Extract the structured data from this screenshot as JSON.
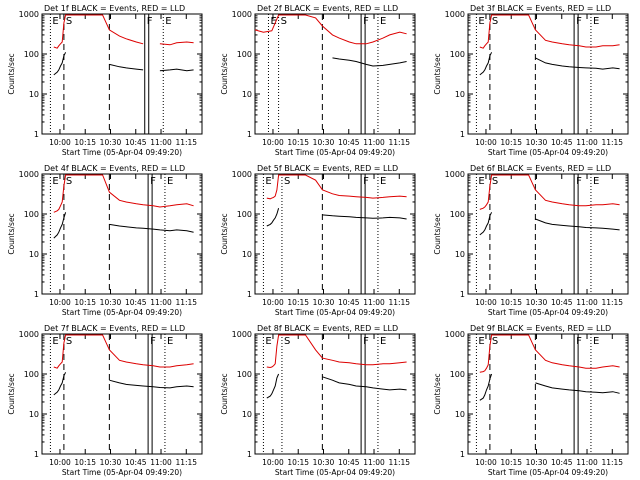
{
  "figure": {
    "ylabel": "Counts/sec",
    "xlabel": "Start Time (05-Apr-04 09:49:20)",
    "x_tick_labels": [
      "10:00",
      "10:15",
      "10:30",
      "10:45",
      "11:00",
      "11:15"
    ],
    "y_tick_labels": [
      "1",
      "10",
      "100",
      "1000"
    ],
    "colors": {
      "events": "#000000",
      "lld": "#dd0000",
      "marker": "#000000"
    }
  },
  "chart_data": [
    {
      "type": "line",
      "title": "Det 1f BLACK = Events, RED = LLD",
      "xlabel": "Start Time (05-Apr-04 09:49:20)",
      "ylabel": "Counts/sec",
      "x_unit": "minutes after 09:49:20",
      "xlim": [
        0,
        95
      ],
      "ylim": [
        1,
        1000
      ],
      "y_scale": "log",
      "x": [
        7,
        9,
        10,
        11,
        12,
        13,
        14,
        20,
        24,
        30,
        36,
        40,
        46,
        50,
        56,
        60,
        66,
        70,
        76,
        80,
        86,
        90
      ],
      "series": [
        {
          "name": "Events",
          "values": [
            30,
            35,
            40,
            50,
            60,
            90,
            110,
            null,
            null,
            null,
            null,
            55,
            48,
            45,
            42,
            40,
            null,
            38,
            40,
            42,
            38,
            40
          ]
        },
        {
          "name": "LLD",
          "values": [
            150,
            140,
            160,
            180,
            200,
            600,
            1000,
            1000,
            1000,
            1000,
            1000,
            400,
            280,
            240,
            200,
            180,
            null,
            180,
            170,
            190,
            200,
            190
          ]
        }
      ],
      "markers": [
        {
          "label": "E",
          "style": "dotted",
          "x": 5
        },
        {
          "label": "S",
          "style": "dashed",
          "x": 13
        },
        {
          "label": "",
          "style": "dashed",
          "x": 40
        },
        {
          "label": "F",
          "style": "solid",
          "x": 61
        },
        {
          "label": "E",
          "style": "dotted",
          "x": 72
        }
      ]
    },
    {
      "type": "line",
      "title": "Det 2f BLACK = Events, RED = LLD",
      "xlabel": "Start Time (05-Apr-04 09:49:20)",
      "ylabel": "Counts/sec",
      "x_unit": "minutes after 09:49:20",
      "xlim": [
        0,
        95
      ],
      "ylim": [
        1,
        1000
      ],
      "y_scale": "log",
      "x": [
        0,
        5,
        10,
        14,
        18,
        22,
        26,
        30,
        36,
        40,
        46,
        50,
        56,
        60,
        66,
        70,
        76,
        80,
        86,
        90
      ],
      "series": [
        {
          "name": "Events",
          "values": [
            null,
            null,
            null,
            null,
            null,
            null,
            null,
            null,
            null,
            null,
            80,
            75,
            70,
            65,
            55,
            50,
            52,
            55,
            60,
            65
          ]
        },
        {
          "name": "LLD",
          "values": [
            400,
            350,
            380,
            1000,
            1000,
            1000,
            1000,
            1000,
            800,
            500,
            300,
            250,
            200,
            180,
            180,
            200,
            250,
            300,
            350,
            320
          ]
        }
      ],
      "markers": [
        {
          "label": "E",
          "style": "dotted",
          "x": 8
        },
        {
          "label": "S",
          "style": "dotted",
          "x": 14
        },
        {
          "label": "",
          "style": "dashed",
          "x": 40
        },
        {
          "label": "F",
          "style": "solid",
          "x": 63
        },
        {
          "label": "E",
          "style": "dotted",
          "x": 73
        }
      ]
    },
    {
      "type": "line",
      "title": "Det 3f BLACK = Events, RED = LLD",
      "xlabel": "Start Time (05-Apr-04 09:49:20)",
      "ylabel": "Counts/sec",
      "x_unit": "minutes after 09:49:20",
      "xlim": [
        0,
        95
      ],
      "ylim": [
        1,
        1000
      ],
      "y_scale": "log",
      "x": [
        7,
        9,
        10,
        11,
        12,
        13,
        14,
        20,
        24,
        30,
        36,
        40,
        46,
        50,
        56,
        60,
        66,
        70,
        76,
        80,
        86,
        90
      ],
      "series": [
        {
          "name": "Events",
          "values": [
            30,
            35,
            40,
            50,
            60,
            90,
            110,
            null,
            null,
            null,
            null,
            80,
            60,
            55,
            50,
            48,
            46,
            45,
            44,
            42,
            45,
            43
          ]
        },
        {
          "name": "LLD",
          "values": [
            150,
            140,
            160,
            180,
            200,
            600,
            1000,
            1000,
            1000,
            1000,
            1000,
            400,
            220,
            200,
            180,
            170,
            160,
            150,
            150,
            160,
            160,
            170
          ]
        }
      ],
      "markers": [
        {
          "label": "E",
          "style": "dotted",
          "x": 5
        },
        {
          "label": "S",
          "style": "dashed",
          "x": 13
        },
        {
          "label": "",
          "style": "dashed",
          "x": 40
        },
        {
          "label": "F",
          "style": "solid",
          "x": 63
        },
        {
          "label": "E",
          "style": "dotted",
          "x": 73
        }
      ]
    },
    {
      "type": "line",
      "title": "Det 4f BLACK = Events, RED = LLD",
      "xlabel": "Start Time (05-Apr-04 09:49:20)",
      "ylabel": "Counts/sec",
      "x_unit": "minutes after 09:49:20",
      "xlim": [
        0,
        95
      ],
      "ylim": [
        1,
        1000
      ],
      "y_scale": "log",
      "x": [
        7,
        9,
        10,
        11,
        12,
        13,
        14,
        20,
        24,
        30,
        36,
        40,
        46,
        50,
        56,
        60,
        66,
        70,
        76,
        80,
        86,
        90
      ],
      "series": [
        {
          "name": "Events",
          "values": [
            25,
            30,
            35,
            45,
            55,
            80,
            110,
            null,
            null,
            null,
            null,
            55,
            50,
            48,
            45,
            44,
            42,
            40,
            38,
            40,
            38,
            35
          ]
        },
        {
          "name": "LLD",
          "values": [
            110,
            120,
            130,
            160,
            200,
            500,
            1000,
            1000,
            1000,
            1000,
            1000,
            350,
            220,
            200,
            180,
            170,
            160,
            150,
            160,
            170,
            180,
            160
          ]
        }
      ],
      "markers": [
        {
          "label": "E",
          "style": "dotted",
          "x": 5
        },
        {
          "label": "S",
          "style": "dashed",
          "x": 13
        },
        {
          "label": "",
          "style": "dashed",
          "x": 40
        },
        {
          "label": "F",
          "style": "solid",
          "x": 63
        },
        {
          "label": "E",
          "style": "dotted",
          "x": 73
        }
      ]
    },
    {
      "type": "line",
      "title": "Det 5f BLACK = Events, RED = LLD",
      "xlabel": "Start Time (05-Apr-04 09:49:20)",
      "ylabel": "Counts/sec",
      "x_unit": "minutes after 09:49:20",
      "xlim": [
        0,
        95
      ],
      "ylim": [
        1,
        1000
      ],
      "y_scale": "log",
      "x": [
        7,
        9,
        10,
        11,
        12,
        13,
        14,
        20,
        24,
        30,
        36,
        40,
        46,
        50,
        56,
        60,
        66,
        70,
        76,
        80,
        86,
        90
      ],
      "series": [
        {
          "name": "Events",
          "values": [
            50,
            55,
            60,
            70,
            80,
            100,
            140,
            null,
            null,
            null,
            null,
            95,
            90,
            88,
            85,
            82,
            80,
            78,
            80,
            82,
            80,
            75
          ]
        },
        {
          "name": "LLD",
          "values": [
            250,
            240,
            250,
            260,
            280,
            400,
            1000,
            1000,
            1000,
            1000,
            700,
            400,
            320,
            290,
            280,
            270,
            260,
            250,
            260,
            270,
            280,
            270
          ]
        }
      ],
      "markers": [
        {
          "label": "E",
          "style": "dotted",
          "x": 5
        },
        {
          "label": "S",
          "style": "dotted",
          "x": 16
        },
        {
          "label": "",
          "style": "dashed",
          "x": 40
        },
        {
          "label": "F",
          "style": "solid",
          "x": 63
        },
        {
          "label": "E",
          "style": "dotted",
          "x": 73
        }
      ]
    },
    {
      "type": "line",
      "title": "Det 6f BLACK = Events, RED = LLD",
      "xlabel": "Start Time (05-Apr-04 09:49:20)",
      "ylabel": "Counts/sec",
      "x_unit": "minutes after 09:49:20",
      "xlim": [
        0,
        95
      ],
      "ylim": [
        1,
        1000
      ],
      "y_scale": "log",
      "x": [
        7,
        9,
        10,
        11,
        12,
        13,
        14,
        20,
        24,
        30,
        36,
        40,
        46,
        50,
        56,
        60,
        66,
        70,
        76,
        80,
        86,
        90
      ],
      "series": [
        {
          "name": "Events",
          "values": [
            30,
            35,
            40,
            50,
            60,
            90,
            110,
            null,
            null,
            null,
            null,
            75,
            60,
            55,
            52,
            50,
            48,
            46,
            45,
            44,
            42,
            40
          ]
        },
        {
          "name": "LLD",
          "values": [
            130,
            140,
            150,
            170,
            200,
            500,
            1000,
            1000,
            1000,
            1000,
            1000,
            400,
            220,
            200,
            180,
            170,
            160,
            160,
            170,
            170,
            180,
            170
          ]
        }
      ],
      "markers": [
        {
          "label": "E",
          "style": "dotted",
          "x": 5
        },
        {
          "label": "S",
          "style": "dashed",
          "x": 13
        },
        {
          "label": "",
          "style": "dashed",
          "x": 40
        },
        {
          "label": "F",
          "style": "solid",
          "x": 63
        },
        {
          "label": "E",
          "style": "dotted",
          "x": 73
        }
      ]
    },
    {
      "type": "line",
      "title": "Det 7f BLACK = Events, RED = LLD",
      "xlabel": "Start Time (05-Apr-04 09:49:20)",
      "ylabel": "Counts/sec",
      "x_unit": "minutes after 09:49:20",
      "xlim": [
        0,
        95
      ],
      "ylim": [
        1,
        1000
      ],
      "y_scale": "log",
      "x": [
        7,
        9,
        10,
        11,
        12,
        13,
        14,
        20,
        24,
        30,
        36,
        40,
        46,
        50,
        56,
        60,
        66,
        70,
        76,
        80,
        86,
        90
      ],
      "series": [
        {
          "name": "Events",
          "values": [
            30,
            35,
            40,
            50,
            60,
            90,
            110,
            null,
            null,
            null,
            null,
            70,
            60,
            55,
            52,
            50,
            48,
            46,
            45,
            48,
            50,
            48
          ]
        },
        {
          "name": "LLD",
          "values": [
            150,
            140,
            160,
            180,
            200,
            600,
            1000,
            1000,
            1000,
            1000,
            1000,
            400,
            220,
            200,
            180,
            170,
            160,
            150,
            150,
            160,
            170,
            180
          ]
        }
      ],
      "markers": [
        {
          "label": "E",
          "style": "dotted",
          "x": 5
        },
        {
          "label": "S",
          "style": "dashed",
          "x": 13
        },
        {
          "label": "",
          "style": "dashed",
          "x": 40
        },
        {
          "label": "F",
          "style": "solid",
          "x": 63
        },
        {
          "label": "E",
          "style": "dotted",
          "x": 73
        }
      ]
    },
    {
      "type": "line",
      "title": "Det 8f BLACK = Events, RED = LLD",
      "xlabel": "Start Time (05-Apr-04 09:49:20)",
      "ylabel": "Counts/sec",
      "x_unit": "minutes after 09:49:20",
      "xlim": [
        0,
        95
      ],
      "ylim": [
        1,
        1000
      ],
      "y_scale": "log",
      "x": [
        7,
        9,
        10,
        11,
        12,
        13,
        14,
        20,
        24,
        30,
        36,
        40,
        46,
        50,
        56,
        60,
        66,
        70,
        76,
        80,
        86,
        90
      ],
      "series": [
        {
          "name": "Events",
          "values": [
            25,
            28,
            32,
            40,
            50,
            80,
            100,
            null,
            null,
            null,
            null,
            85,
            70,
            60,
            55,
            50,
            48,
            45,
            42,
            40,
            42,
            40
          ]
        },
        {
          "name": "LLD",
          "values": [
            150,
            145,
            150,
            160,
            180,
            500,
            1000,
            1000,
            1000,
            1000,
            400,
            250,
            220,
            200,
            190,
            180,
            170,
            170,
            180,
            180,
            190,
            200
          ]
        }
      ],
      "markers": [
        {
          "label": "E",
          "style": "dotted",
          "x": 5
        },
        {
          "label": "S",
          "style": "dotted",
          "x": 16
        },
        {
          "label": "",
          "style": "dashed",
          "x": 40
        },
        {
          "label": "F",
          "style": "solid",
          "x": 63
        },
        {
          "label": "E",
          "style": "dotted",
          "x": 73
        }
      ]
    },
    {
      "type": "line",
      "title": "Det 9f BLACK = Events, RED = LLD",
      "xlabel": "Start Time (05-Apr-04 09:49:20)",
      "ylabel": "Counts/sec",
      "x_unit": "minutes after 09:49:20",
      "xlim": [
        0,
        95
      ],
      "ylim": [
        1,
        1000
      ],
      "y_scale": "log",
      "x": [
        7,
        9,
        10,
        11,
        12,
        13,
        14,
        20,
        24,
        30,
        36,
        40,
        46,
        50,
        56,
        60,
        66,
        70,
        76,
        80,
        86,
        90
      ],
      "series": [
        {
          "name": "Events",
          "values": [
            22,
            25,
            30,
            40,
            50,
            75,
            100,
            null,
            null,
            null,
            null,
            60,
            50,
            45,
            42,
            40,
            38,
            36,
            35,
            34,
            36,
            33
          ]
        },
        {
          "name": "LLD",
          "values": [
            110,
            115,
            120,
            140,
            170,
            500,
            1000,
            1000,
            1000,
            1000,
            1000,
            400,
            220,
            190,
            170,
            160,
            150,
            140,
            140,
            150,
            160,
            150
          ]
        }
      ],
      "markers": [
        {
          "label": "E",
          "style": "dotted",
          "x": 5
        },
        {
          "label": "S",
          "style": "dashed",
          "x": 13
        },
        {
          "label": "",
          "style": "dashed",
          "x": 40
        },
        {
          "label": "F",
          "style": "solid",
          "x": 63
        },
        {
          "label": "E",
          "style": "dotted",
          "x": 73
        }
      ]
    }
  ]
}
